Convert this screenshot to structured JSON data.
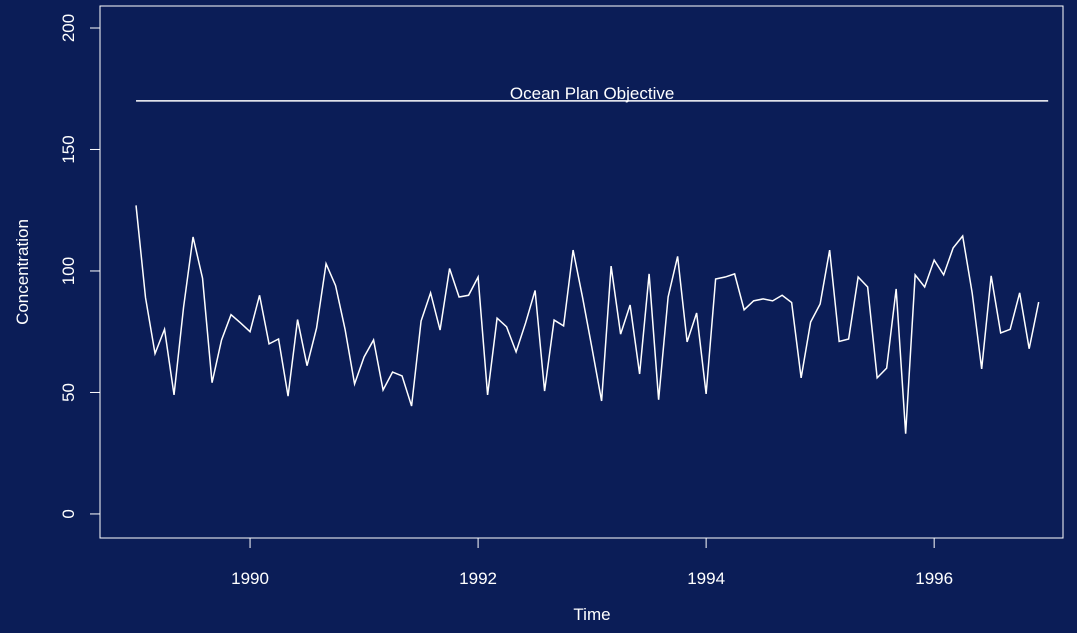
{
  "chart_data": {
    "type": "line",
    "xlabel": "Time",
    "ylabel": "Concentration",
    "xlim": [
      1988.684,
      1997.13
    ],
    "ylim": [
      -9.9,
      209.05
    ],
    "xticks": [
      1990,
      1992,
      1994,
      1996
    ],
    "yticks": [
      0,
      50,
      100,
      150,
      200
    ],
    "reference_line": {
      "value": 170,
      "label": "Ocean Plan Objective",
      "x": [
        1989,
        1997
      ]
    },
    "color": "#ffffff",
    "x": [
      1989,
      1989.0833,
      1989.1667,
      1989.25,
      1989.3333,
      1989.4167,
      1989.5,
      1989.5833,
      1989.6667,
      1989.75,
      1989.8333,
      1989.9167,
      1990,
      1990.0833,
      1990.1667,
      1990.25,
      1990.3333,
      1990.4167,
      1990.5,
      1990.5833,
      1990.6667,
      1990.75,
      1990.8333,
      1990.9167,
      1991,
      1991.0833,
      1991.1667,
      1991.25,
      1991.3333,
      1991.4167,
      1991.5,
      1991.5833,
      1991.6667,
      1991.75,
      1991.8333,
      1991.9167,
      1992,
      1992.0833,
      1992.1667,
      1992.25,
      1992.3333,
      1992.4167,
      1992.5,
      1992.5833,
      1992.6667,
      1992.75,
      1992.8333,
      1992.9167,
      1993,
      1993.0833,
      1993.1667,
      1993.25,
      1993.3333,
      1993.4167,
      1993.5,
      1993.5833,
      1993.6667,
      1993.75,
      1993.8333,
      1993.9167,
      1994,
      1994.0833,
      1994.1667,
      1994.25,
      1994.3333,
      1994.4167,
      1994.5,
      1994.5833,
      1994.6667,
      1994.75,
      1994.8333,
      1994.9167,
      1995,
      1995.0833,
      1995.1667,
      1995.25,
      1995.3333,
      1995.4167,
      1995.5,
      1995.5833,
      1995.6667,
      1995.75,
      1995.8333,
      1995.9167,
      1996,
      1996.0833,
      1996.1667,
      1996.25,
      1996.3333,
      1996.4167,
      1996.5,
      1996.5833,
      1996.6667,
      1996.75,
      1996.8333,
      1996.9167
    ],
    "values": [
      127,
      89,
      66,
      76,
      49,
      85,
      114,
      97,
      54,
      71.6,
      82,
      78.6,
      75,
      90,
      70,
      72,
      48.5,
      80,
      61,
      76.5,
      103,
      94,
      76,
      53.5,
      64.6,
      71.6,
      51,
      58.4,
      56.8,
      44.4,
      79.4,
      91,
      75.7,
      101,
      89.3,
      90,
      97.5,
      49,
      80.6,
      77,
      66.7,
      78.6,
      92,
      50.6,
      79.8,
      77.4,
      108.6,
      89,
      68,
      46.5,
      102,
      74,
      86,
      57.6,
      98.8,
      47,
      89.3,
      106,
      70.8,
      82.7,
      49.4,
      96.7,
      97.5,
      98.8,
      84,
      87.7,
      88.5,
      87.7,
      90,
      87,
      56,
      79,
      86.4,
      108.6,
      71,
      72,
      97.5,
      93.4,
      56,
      60,
      92.6,
      33,
      98.4,
      93.4,
      104.5,
      98.4,
      109.5,
      114.4,
      91,
      59.7,
      98,
      74.5,
      76,
      91,
      68,
      87.2
    ]
  }
}
